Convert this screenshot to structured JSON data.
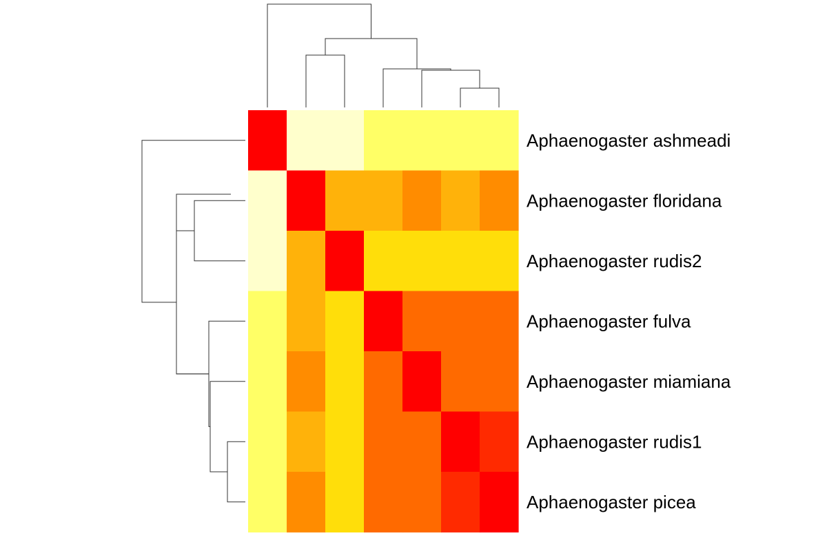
{
  "chart_data": {
    "type": "heatmap",
    "title": "",
    "xlabel": "",
    "ylabel": "",
    "rows": [
      "Aphaenogaster ashmeadi",
      "Aphaenogaster floridana",
      "Aphaenogaster rudis2",
      "Aphaenogaster fulva",
      "Aphaenogaster miamiana",
      "Aphaenogaster rudis1",
      "Aphaenogaster picea"
    ],
    "columns": [
      "Aphaenogaster ashmeadi",
      "Aphaenogaster floridana",
      "Aphaenogaster rudis2",
      "Aphaenogaster fulva",
      "Aphaenogaster miamiana",
      "Aphaenogaster rudis1",
      "Aphaenogaster picea"
    ],
    "palette": [
      "#ff0000",
      "#ff2a00",
      "#ff6a00",
      "#ff8c00",
      "#ffb20a",
      "#ffde0a",
      "#ffff66",
      "#ffffcc"
    ],
    "values": [
      [
        0,
        7,
        7,
        6,
        6,
        6,
        6
      ],
      [
        7,
        0,
        4,
        4,
        3,
        4,
        3
      ],
      [
        7,
        4,
        0,
        5,
        5,
        5,
        5
      ],
      [
        6,
        4,
        5,
        0,
        2,
        2,
        2
      ],
      [
        6,
        3,
        5,
        2,
        0,
        2,
        2
      ],
      [
        6,
        4,
        5,
        2,
        2,
        0,
        1
      ],
      [
        6,
        3,
        5,
        2,
        2,
        1,
        0
      ]
    ],
    "column_dendrogram": true,
    "row_dendrogram": true
  }
}
